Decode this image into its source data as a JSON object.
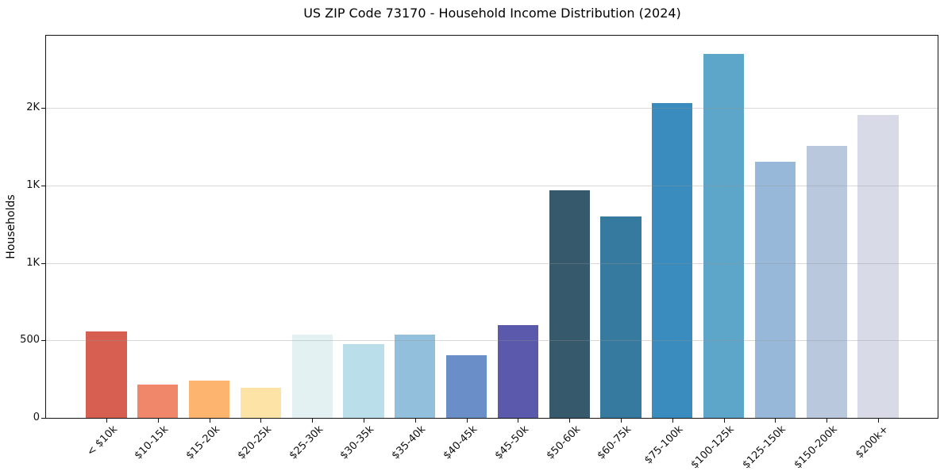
{
  "chart_data": {
    "type": "bar",
    "title": "US ZIP Code 73170 - Household Income Distribution (2024)",
    "xlabel": "",
    "ylabel": "Households",
    "categories": [
      "< $10k",
      "$10-15k",
      "$15-20k",
      "$20-25k",
      "$25-30k",
      "$30-35k",
      "$35-40k",
      "$40-45k",
      "$45-50k",
      "$50-60k",
      "$60-75k",
      "$75-100k",
      "$100-125k",
      "$125-150k",
      "$150-200k",
      "$200k+"
    ],
    "values": [
      556,
      215,
      240,
      194,
      539,
      474,
      536,
      405,
      599,
      1468,
      1301,
      2031,
      2350,
      1651,
      1755,
      1956
    ],
    "bar_colors": [
      "#d65f51",
      "#f0876b",
      "#fcb46e",
      "#fde3a5",
      "#e4f1f3",
      "#badeea",
      "#91bfdc",
      "#6a8ec8",
      "#5b59ac",
      "#36596c",
      "#377a9f",
      "#3a8cbe",
      "#5ea6c9",
      "#97b8d8",
      "#b9c8dd",
      "#d8dae8"
    ],
    "ylim": [
      0,
      2466
    ],
    "yticks": [
      {
        "value": 0,
        "label": "0"
      },
      {
        "value": 500,
        "label": "500"
      },
      {
        "value": 1000,
        "label": "1K"
      },
      {
        "value": 1500,
        "label": "1K"
      },
      {
        "value": 2000,
        "label": "2K"
      }
    ],
    "grid": "horizontal gridlines at y-ticks, drawn translucently above bars",
    "legend": "none",
    "colors": {
      "background": "#ffffff",
      "spine": "#141414",
      "gridline_rgba": "rgba(145,145,145,0.35)",
      "text": "#111111"
    }
  }
}
